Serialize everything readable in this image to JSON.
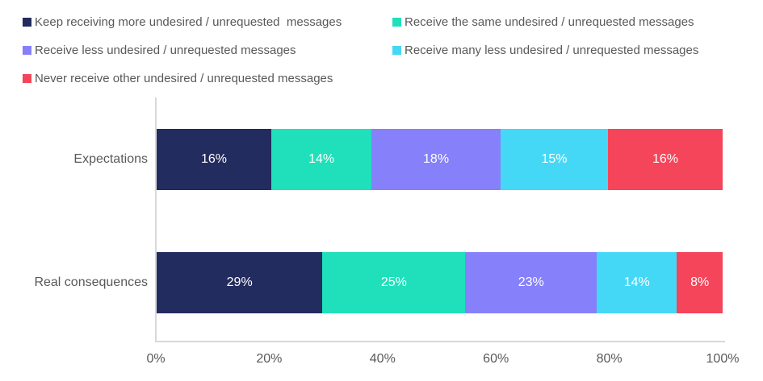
{
  "chart_data": {
    "type": "bar",
    "variant": "horizontal-stacked-100pct",
    "title": "",
    "categories": [
      "Expectations",
      "Real consequences"
    ],
    "series": [
      {
        "name": "Keep receiving more undesired / unrequested  messages",
        "color": "#232C5E",
        "values": [
          16,
          29
        ]
      },
      {
        "name": "Receive the same undesired / unrequested messages",
        "color": "#1FE0BB",
        "values": [
          14,
          25
        ]
      },
      {
        "name": "Receive less undesired / unrequested messages",
        "color": "#8680FB",
        "values": [
          18,
          23
        ]
      },
      {
        "name": "Receive many less undesired / unrequested messages",
        "color": "#45D8F6",
        "values": [
          15,
          14
        ]
      },
      {
        "name": "Never receive other undesired / unrequested messages",
        "color": "#F4455A",
        "values": [
          16,
          8
        ]
      }
    ],
    "data_labels": [
      [
        "16%",
        "14%",
        "18%",
        "15%",
        "16%"
      ],
      [
        "29%",
        "25%",
        "23%",
        "14%",
        "8%"
      ]
    ],
    "x_ticks": [
      "0%",
      "20%",
      "40%",
      "60%",
      "80%",
      "100%"
    ],
    "xlim": [
      0,
      100
    ],
    "xlabel": "",
    "ylabel": "",
    "legend_position": "top",
    "grid": false,
    "colors": {
      "axis_line": "#D9D9D9",
      "tick_text": "#595959",
      "legend_text": "#595959",
      "bar_label_text": "#FFFFFF",
      "background": "#FFFFFF"
    }
  }
}
